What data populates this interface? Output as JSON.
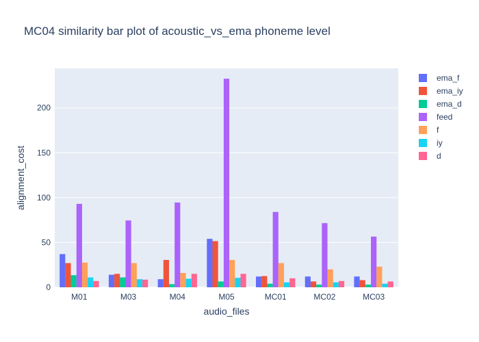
{
  "chart_data": {
    "type": "bar",
    "title": "MC04 similarity bar plot of acoustic_vs_ema phoneme level",
    "xlabel": "audio_files",
    "ylabel": "alignment_cost",
    "categories": [
      "M01",
      "M03",
      "M04",
      "M05",
      "MC01",
      "MC02",
      "MC03"
    ],
    "ylim": [
      0,
      244
    ],
    "yticks": [
      0,
      50,
      100,
      150,
      200
    ],
    "grid": true,
    "legend_position": "right",
    "series": [
      {
        "name": "ema_f",
        "color": "#636efa",
        "values": [
          37,
          14,
          9,
          54,
          12,
          12,
          12
        ]
      },
      {
        "name": "ema_iy",
        "color": "#ef553b",
        "values": [
          27,
          15,
          30.5,
          51.5,
          12.5,
          6.5,
          8
        ]
      },
      {
        "name": "ema_d",
        "color": "#00cc96",
        "values": [
          13.5,
          11,
          3.5,
          6.5,
          4,
          3,
          3
        ]
      },
      {
        "name": "feed",
        "color": "#ab63fa",
        "values": [
          93,
          74.5,
          94.5,
          232.5,
          84,
          71.5,
          56.5
        ]
      },
      {
        "name": "f",
        "color": "#ffa15a",
        "values": [
          27.5,
          27,
          16,
          30.5,
          27,
          20,
          23
        ]
      },
      {
        "name": "iy",
        "color": "#19d3f3",
        "values": [
          11,
          9,
          9.5,
          10.5,
          5.5,
          5.5,
          4
        ]
      },
      {
        "name": "d",
        "color": "#ff6692",
        "values": [
          7,
          8.5,
          15,
          15,
          10,
          7,
          6.5
        ]
      }
    ]
  }
}
